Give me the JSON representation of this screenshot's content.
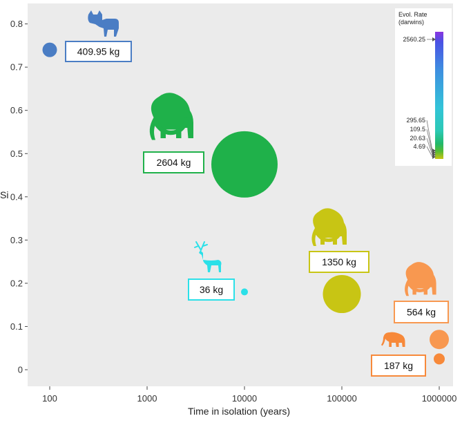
{
  "chart_data": {
    "type": "scatter",
    "xlabel": "Time in isolation (years)",
    "ylabel": "Si",
    "x_scale": "log",
    "xlim": [
      60,
      1500000
    ],
    "ylim": [
      -0.04,
      0.85
    ],
    "grid": false,
    "x_ticks": [
      "100",
      "1000",
      "10000",
      "100000",
      "1000000"
    ],
    "y_ticks": [
      "0",
      "0.1",
      "0.2",
      "0.3",
      "0.4",
      "0.5",
      "0.6",
      "0.7",
      "0.8"
    ],
    "points": [
      {
        "x": 100,
        "y": 0.74,
        "mass_label": "409.95 kg",
        "animal": "cattle",
        "color": "#4a7dc4",
        "rate": 2560.25
      },
      {
        "x": 10000,
        "y": 0.475,
        "mass_label": "2604 kg",
        "animal": "mammoth",
        "color": "#1fb14a",
        "rate": 20.63
      },
      {
        "x": 10000,
        "y": 0.18,
        "mass_label": "36 kg",
        "animal": "deer",
        "color": "#2be0e8",
        "rate": 109.5
      },
      {
        "x": 100000,
        "y": 0.175,
        "mass_label": "1350 kg",
        "animal": "mammoth",
        "color": "#c8c514",
        "rate": 4.69
      },
      {
        "x": 1000000,
        "y": 0.07,
        "mass_label": "564 kg",
        "animal": "mammoth",
        "color": "#f89850",
        "rate": 4.69
      },
      {
        "x": 1000000,
        "y": 0.025,
        "mass_label": "187 kg",
        "animal": "elephant",
        "color": "#f7893a",
        "rate": 4.69
      }
    ],
    "colorbar": {
      "title": "Evol. Rate\n(darwins)",
      "ticks": [
        "2560.25",
        "295.65",
        "109.5",
        "20.63",
        "4.69"
      ]
    }
  }
}
